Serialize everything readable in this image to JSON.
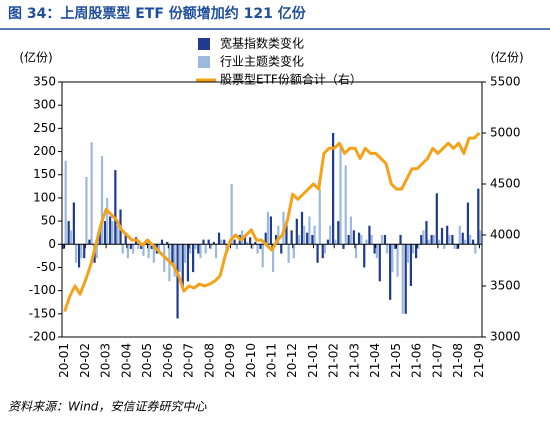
{
  "chart_data": {
    "type": "bar",
    "title": "图 34：上周股票型 ETF 份额增加约 121 亿份",
    "y_label": "(亿份)",
    "y2_label": "(亿份)",
    "source": "资料来源：Wind，安信证券研究中心",
    "categories": [
      "20-01",
      null,
      null,
      null,
      "20-02",
      null,
      null,
      null,
      "20-03",
      null,
      null,
      null,
      "20-04",
      null,
      null,
      null,
      "20-05",
      null,
      null,
      null,
      "20-06",
      null,
      null,
      null,
      "20-07",
      null,
      null,
      null,
      "20-08",
      null,
      null,
      null,
      "20-09",
      null,
      null,
      null,
      "20-10",
      null,
      null,
      null,
      "20-11",
      null,
      null,
      null,
      "20-12",
      null,
      null,
      null,
      "21-01",
      null,
      null,
      null,
      "21-02",
      null,
      null,
      null,
      "21-03",
      null,
      null,
      null,
      "21-04",
      null,
      null,
      null,
      "21-05",
      null,
      null,
      null,
      "21-06",
      null,
      null,
      null,
      "21-07",
      null,
      null,
      null,
      "21-08",
      null,
      null,
      null,
      "21-09"
    ],
    "series": [
      {
        "name": "宽基指数类变化",
        "color": "#1f3a8f",
        "values": [
          -10,
          50,
          90,
          -50,
          -30,
          10,
          -40,
          30,
          50,
          60,
          160,
          75,
          20,
          -10,
          15,
          -10,
          10,
          -10,
          -20,
          10,
          5,
          -40,
          -160,
          -90,
          -80,
          -60,
          -20,
          10,
          10,
          5,
          25,
          10,
          5,
          10,
          20,
          20,
          15,
          5,
          -10,
          25,
          60,
          20,
          -20,
          50,
          30,
          55,
          70,
          25,
          20,
          -40,
          -30,
          10,
          240,
          50,
          -10,
          20,
          30,
          25,
          -50,
          40,
          -20,
          -80,
          20,
          -120,
          -10,
          20,
          -150,
          -90,
          -30,
          20,
          50,
          20,
          110,
          35,
          40,
          20,
          -10,
          25,
          90,
          10,
          120
        ]
      },
      {
        "name": "行业主题类变化",
        "color": "#9db9dc",
        "values": [
          180,
          30,
          -40,
          -30,
          145,
          220,
          -30,
          190,
          100,
          50,
          40,
          -20,
          -30,
          -20,
          -10,
          -25,
          -30,
          -40,
          -20,
          -60,
          -80,
          -70,
          -60,
          -40,
          -20,
          -10,
          -30,
          -20,
          -10,
          -30,
          10,
          -20,
          130,
          -10,
          30,
          5,
          -10,
          -20,
          -50,
          70,
          -60,
          40,
          70,
          -40,
          -30,
          20,
          40,
          60,
          40,
          120,
          -20,
          40,
          10,
          210,
          170,
          60,
          -30,
          20,
          10,
          20,
          -30,
          20,
          -20,
          -60,
          -70,
          -150,
          -40,
          -20,
          -10,
          30,
          10,
          20,
          10,
          -10,
          20,
          -10,
          40,
          10,
          20,
          -20,
          30
        ]
      },
      {
        "name": "股票型ETF份额合计（右）",
        "color": "#f5a21b",
        "type": "line",
        "axis": "y2",
        "values": [
          3250,
          3400,
          3500,
          3420,
          3550,
          3700,
          3900,
          4100,
          4250,
          4200,
          4150,
          4050,
          4000,
          3950,
          3950,
          3900,
          3950,
          3900,
          3850,
          3800,
          3750,
          3700,
          3600,
          3450,
          3500,
          3480,
          3520,
          3500,
          3520,
          3550,
          3600,
          3800,
          3950,
          4000,
          3950,
          4000,
          4050,
          3950,
          3950,
          3900,
          3850,
          3950,
          4000,
          4150,
          4400,
          4350,
          4400,
          4450,
          4500,
          4450,
          4800,
          4850,
          4850,
          4900,
          4800,
          4850,
          4850,
          4750,
          4850,
          4800,
          4800,
          4750,
          4700,
          4500,
          4450,
          4450,
          4550,
          4650,
          4650,
          4700,
          4750,
          4850,
          4800,
          4850,
          4900,
          4850,
          4900,
          4800,
          4950,
          4950,
          5000
        ]
      }
    ],
    "ylim": [
      -200,
      350
    ],
    "yticks": [
      -200,
      -150,
      -100,
      -50,
      0,
      50,
      100,
      150,
      200,
      250,
      300,
      350
    ],
    "y2lim": [
      3000,
      5500
    ],
    "y2ticks": [
      3000,
      3500,
      4000,
      4500,
      5000,
      5500
    ]
  }
}
